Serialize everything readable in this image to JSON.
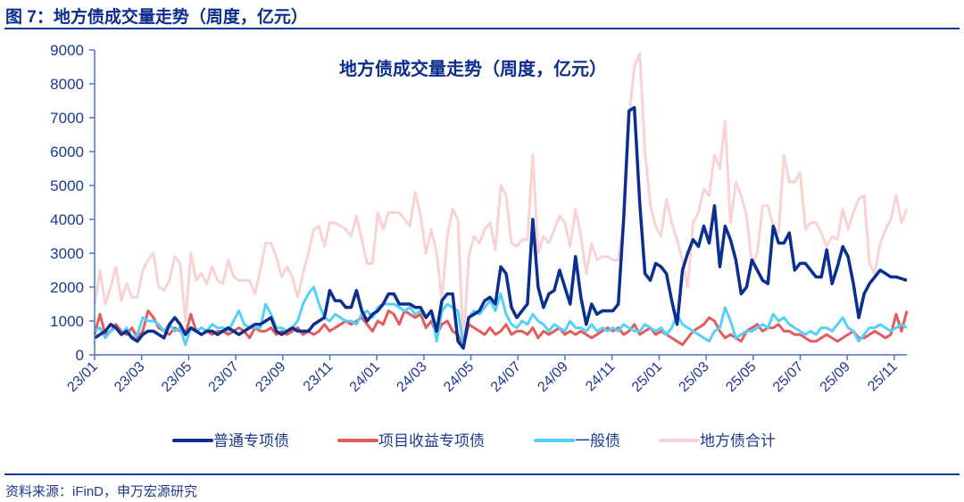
{
  "figure_title": "图 7：地方债成交量走势（周度，亿元）",
  "source": "资料来源：iFinD，申万宏源研究",
  "chart_data": {
    "type": "line",
    "title": "地方债成交量走势（周度，亿元）",
    "xlabel": "",
    "ylabel": "",
    "ylim": [
      0,
      9000
    ],
    "yticks": [
      "0",
      "1000",
      "2000",
      "3000",
      "4000",
      "5000",
      "6000",
      "7000",
      "8000",
      "9000"
    ],
    "xtick_labels": [
      "23/01",
      "23/03",
      "23/05",
      "23/07",
      "23/09",
      "23/11",
      "24/01",
      "24/03",
      "24/05",
      "24/07",
      "24/09",
      "24/11",
      "25/01",
      "25/03",
      "25/05",
      "25/07",
      "25/09",
      "25/11"
    ],
    "x_range": [
      "23/01",
      "25/12"
    ],
    "frequency": "weekly",
    "grid": false,
    "legend_position": "bottom",
    "series": [
      {
        "name": "普通专项债",
        "color": "#0a2f8f",
        "values": [
          500,
          600,
          700,
          900,
          800,
          600,
          700,
          500,
          400,
          600,
          700,
          700,
          600,
          500,
          900,
          1100,
          900,
          600,
          800,
          700,
          600,
          700,
          700,
          600,
          700,
          800,
          700,
          600,
          700,
          800,
          900,
          900,
          1000,
          1100,
          700,
          600,
          700,
          800,
          700,
          700,
          700,
          900,
          1000,
          1100,
          1900,
          1600,
          1600,
          1400,
          1400,
          1900,
          1300,
          1000,
          1200,
          1300,
          1500,
          1800,
          1800,
          1500,
          1500,
          1500,
          1400,
          1400,
          1100,
          1300,
          700,
          1600,
          1800,
          1800,
          400,
          200,
          1100,
          1200,
          1300,
          1600,
          1700,
          1500,
          2600,
          2400,
          1400,
          1100,
          1300,
          1500,
          4000,
          2000,
          1400,
          1800,
          1900,
          2500,
          2000,
          1500,
          2900,
          1700,
          900,
          1500,
          1200,
          1300,
          1300,
          1300,
          1500,
          4000,
          7200,
          7300,
          4500,
          2400,
          2200,
          2700,
          2600,
          2400,
          1600,
          900,
          2500,
          3000,
          3400,
          3200,
          3800,
          3300,
          4400,
          2600,
          3800,
          3400,
          2800,
          1800,
          2000,
          2800,
          2500,
          2200,
          2100,
          3800,
          3300,
          3300,
          3600,
          2500,
          2700,
          2700,
          2500,
          2300,
          2300,
          3100,
          2100,
          2600,
          3200,
          2900,
          2100,
          1100,
          1800,
          2100,
          2300,
          2500,
          2400,
          2300,
          2300,
          2250,
          2200
        ]
      },
      {
        "name": "项目收益专项债",
        "color": "#e35b5b",
        "values": [
          600,
          1200,
          600,
          700,
          900,
          700,
          600,
          800,
          500,
          700,
          1300,
          1100,
          800,
          700,
          600,
          800,
          700,
          600,
          1200,
          700,
          800,
          700,
          600,
          700,
          700,
          600,
          700,
          800,
          700,
          500,
          800,
          700,
          700,
          800,
          600,
          700,
          600,
          700,
          800,
          600,
          700,
          600,
          700,
          900,
          700,
          800,
          900,
          1000,
          900,
          1000,
          1100,
          900,
          700,
          1000,
          900,
          1300,
          1200,
          900,
          1300,
          1200,
          1100,
          1200,
          800,
          1000,
          600,
          900,
          1000,
          700,
          600,
          200,
          900,
          800,
          700,
          600,
          800,
          600,
          700,
          900,
          600,
          700,
          700,
          600,
          800,
          500,
          700,
          600,
          700,
          800,
          600,
          700,
          600,
          700,
          600,
          500,
          600,
          700,
          800,
          700,
          800,
          600,
          700,
          900,
          600,
          700,
          800,
          600,
          700,
          600,
          500,
          400,
          300,
          500,
          700,
          800,
          900,
          1100,
          1000,
          700,
          500,
          600,
          500,
          400,
          700,
          800,
          900,
          700,
          800,
          800,
          900,
          700,
          700,
          600,
          600,
          500,
          400,
          400,
          500,
          600,
          500,
          400,
          500,
          600,
          700,
          500,
          500,
          600,
          700,
          600,
          500,
          600,
          1200,
          700,
          1300
        ]
      },
      {
        "name": "一般债",
        "color": "#55d0fb",
        "values": [
          700,
          800,
          500,
          700,
          800,
          600,
          800,
          500,
          600,
          1100,
          1000,
          1000,
          900,
          700,
          900,
          700,
          800,
          300,
          800,
          700,
          800,
          700,
          900,
          800,
          800,
          700,
          1000,
          1300,
          900,
          800,
          800,
          800,
          1500,
          1200,
          800,
          800,
          700,
          800,
          1000,
          1500,
          1800,
          2000,
          1500,
          1100,
          1000,
          1200,
          1100,
          1000,
          1000,
          900,
          1200,
          1300,
          1100,
          1400,
          1500,
          1500,
          1500,
          1400,
          1300,
          1400,
          1200,
          1300,
          1100,
          1300,
          400,
          1300,
          1500,
          1400,
          1300,
          300,
          1100,
          1300,
          1200,
          1400,
          1600,
          1300,
          1800,
          1200,
          900,
          800,
          1000,
          900,
          1200,
          1000,
          900,
          700,
          900,
          800,
          700,
          1000,
          800,
          800,
          700,
          900,
          700,
          800,
          700,
          800,
          700,
          900,
          800,
          700,
          700,
          900,
          800,
          700,
          800,
          600,
          800,
          1200,
          900,
          800,
          700,
          600,
          500,
          400,
          700,
          800,
          1400,
          1000,
          500,
          600,
          700,
          700,
          800,
          900,
          800,
          1200,
          1000,
          1100,
          900,
          800,
          700,
          600,
          700,
          600,
          800,
          800,
          700,
          900,
          1100,
          800,
          700,
          400,
          600,
          800,
          800,
          900,
          800,
          700,
          800,
          900,
          800
        ]
      },
      {
        "name": "地方债合计",
        "color": "#f9d2d2",
        "values": [
          1500,
          2500,
          1500,
          2000,
          2600,
          1600,
          2100,
          1700,
          1700,
          2500,
          2800,
          3000,
          2000,
          1900,
          2200,
          2900,
          2700,
          1000,
          3000,
          2200,
          2400,
          2100,
          2600,
          2200,
          2100,
          2800,
          2300,
          2200,
          2200,
          2200,
          1800,
          2500,
          3300,
          3300,
          2900,
          2300,
          2600,
          2300,
          1700,
          2400,
          3000,
          3700,
          3800,
          3200,
          3900,
          3900,
          3800,
          3700,
          3500,
          4100,
          3400,
          2700,
          2700,
          4200,
          3700,
          4200,
          4200,
          4200,
          4000,
          3800,
          4800,
          4100,
          3000,
          3700,
          3000,
          1600,
          3500,
          4300,
          4000,
          200,
          2900,
          3500,
          3300,
          3700,
          3900,
          3100,
          5000,
          4700,
          3300,
          3200,
          3400,
          3400,
          5900,
          3000,
          3500,
          3300,
          3700,
          4100,
          3900,
          3200,
          4300,
          3500,
          2400,
          3300,
          2800,
          2900,
          2900,
          2800,
          2800,
          4000,
          7000,
          8500,
          8900,
          6000,
          4400,
          3800,
          3500,
          4600,
          3900,
          3400,
          2800,
          2000,
          3900,
          4200,
          4900,
          4700,
          5900,
          5500,
          6900,
          3900,
          5100,
          4700,
          4100,
          2700,
          3000,
          4400,
          4400,
          3800,
          3600,
          5900,
          5100,
          5100,
          5400,
          3700,
          3900,
          3900,
          3600,
          3200,
          3500,
          3400,
          4300,
          3700,
          4200,
          4600,
          4700,
          2700,
          2400,
          3300,
          3700,
          4000,
          4700,
          3900,
          4300
        ]
      }
    ]
  }
}
